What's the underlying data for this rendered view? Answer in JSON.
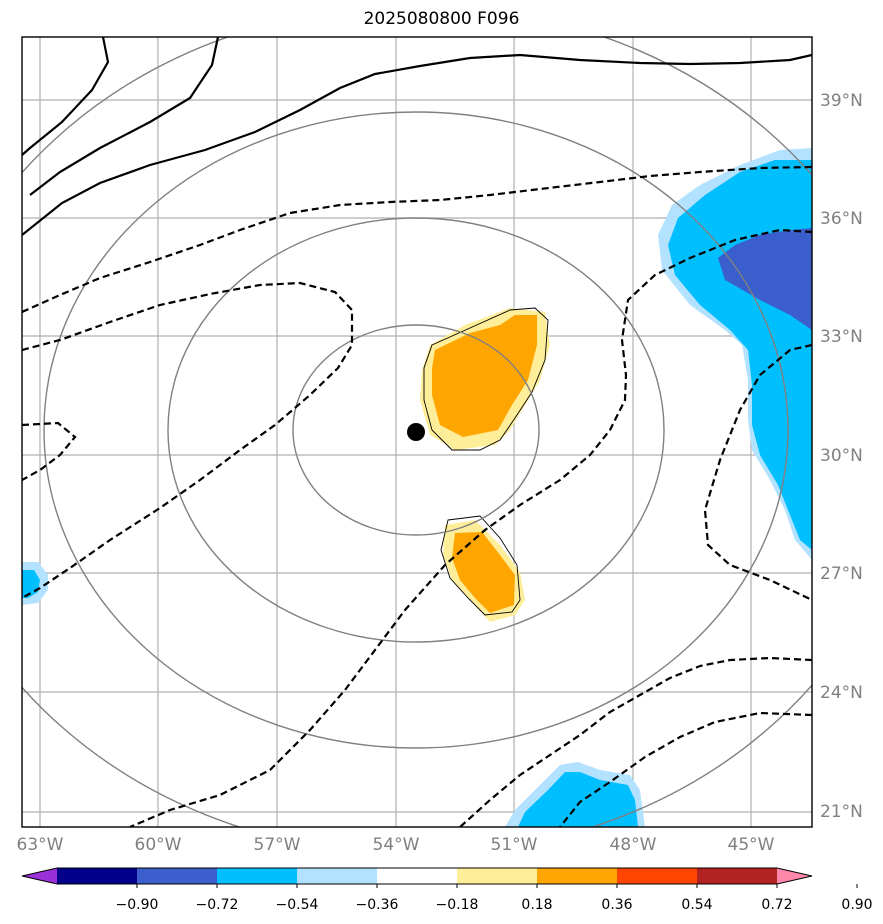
{
  "title": "2025080800 F096",
  "map": {
    "lat_labels": [
      "39°N",
      "36°N",
      "33°N",
      "30°N",
      "27°N",
      "24°N",
      "21°N"
    ],
    "lon_labels": [
      "63°W",
      "60°W",
      "57°W",
      "54°W",
      "51°W",
      "48°W",
      "45°W"
    ]
  },
  "colorbar": {
    "tick_labels": [
      "−0.90",
      "−0.72",
      "−0.54",
      "−0.36",
      "−0.18",
      "0.18",
      "0.36",
      "0.54",
      "0.72",
      "0.90"
    ],
    "colors": [
      "#9b30d9",
      "#00008b",
      "#3a5fcd",
      "#00bfff",
      "#b2e2ff",
      "#ffffff",
      "#ffee99",
      "#ffa500",
      "#ff4500",
      "#b22222",
      "#ff88aa"
    ]
  },
  "colors": {
    "frame": "#000000",
    "grid": "#b0b0b0",
    "range_rings": "#808080",
    "contour": "#000000",
    "positive_light": "#ffee99",
    "positive_mid": "#ffa500",
    "negative_light": "#b2e2ff",
    "negative_mid": "#00bfff",
    "negative_strong": "#3a5fcd"
  }
}
